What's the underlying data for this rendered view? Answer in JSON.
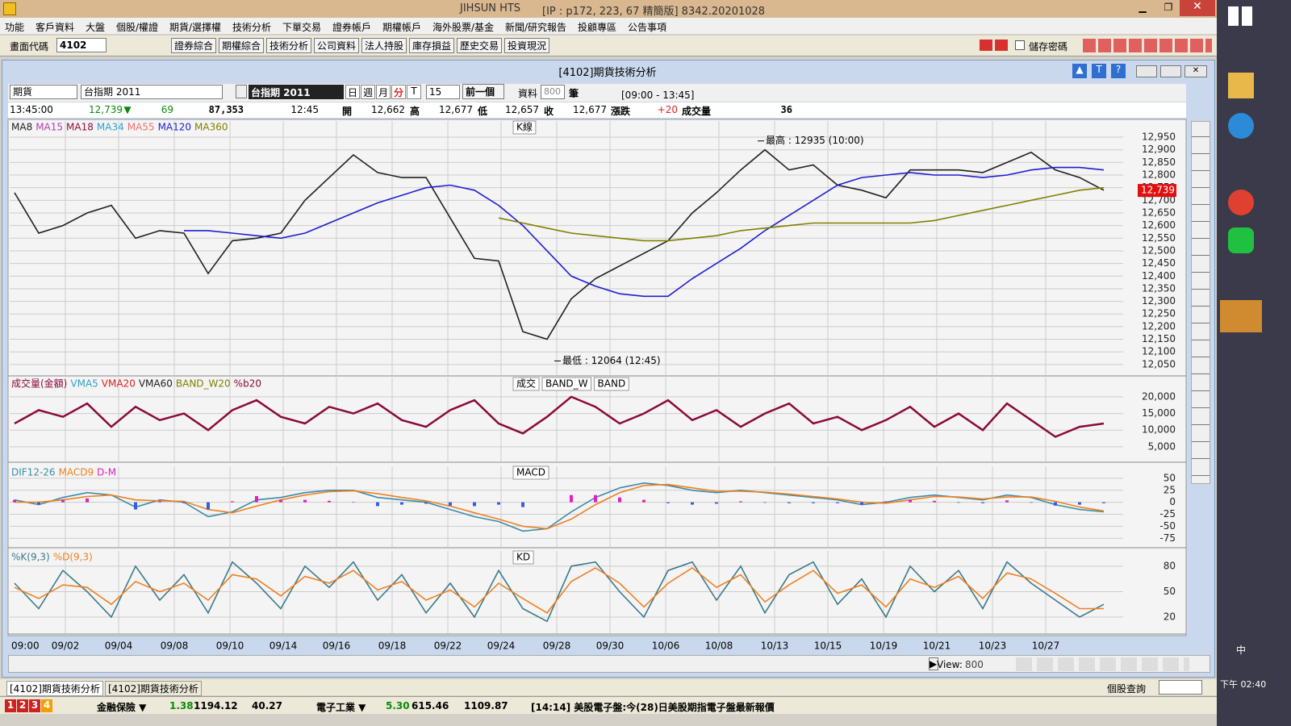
{
  "app": {
    "title": "JIHSUN HTS",
    "conn": "[IP : p172, 223, 67 精簡版] 8342.20201028",
    "menu": [
      "功能",
      "客戶資料",
      "大盤",
      "個股/權證",
      "期貨/選擇權",
      "技術分析",
      "下單交易",
      "證券帳戶",
      "期權帳戶",
      "海外股票/基金",
      "新聞/研究報告",
      "投顧專區",
      "公告事項"
    ],
    "code_label": "畫面代碼",
    "code": "4102",
    "buttons": [
      "證券綜合",
      "期權綜合",
      "技術分析",
      "公司資料",
      "法人持股",
      "庫存損益",
      "歷史交易",
      "投資現況"
    ],
    "save_pwd": "儲存密碼",
    "window_title": "[4102]期貨技術分析",
    "controls": {
      "kind": "期貨",
      "product": "台指期 2011",
      "product2": "台指期 2011",
      "periods": [
        "日",
        "週",
        "月",
        "分",
        "T"
      ],
      "minutes": "15",
      "prev": "前一個",
      "data_label": "資料",
      "count": "800",
      "unit": "筆",
      "session": "[09:00 - 13:45]"
    },
    "quote": [
      "13:45:00",
      "12,739",
      "▼",
      "69",
      "87,353",
      "12:45",
      "開",
      "12,662",
      "高",
      "12,677",
      "低",
      "12,657",
      "收",
      "12,677",
      "漲跌",
      "+20",
      "成交量",
      "36"
    ],
    "view": "View:",
    "view_count": "800",
    "tabs": [
      "[4102]期貨技術分析",
      "[4102]期貨技術分析"
    ],
    "query": "個股查詢",
    "page_nums": [
      "1",
      "2",
      "3",
      "4"
    ],
    "ticker": [
      "金融保險 ▼",
      "1.38",
      "1194.12",
      "40.27",
      "電子工業 ▼",
      "5.30",
      "615.46",
      "1109.87",
      "[14:14] 美股電子盤:今(28)日美股期指電子盤最新報價"
    ],
    "clock": "下午 02:40",
    "ime": "中"
  },
  "chart_data": [
    {
      "type": "line",
      "title": "K線",
      "legend": [
        {
          "text": "MA8",
          "color": "#202020"
        },
        {
          "text": "MA15",
          "color": "#b040b0"
        },
        {
          "text": "MA18",
          "color": "#8b1040"
        },
        {
          "text": "MA34",
          "color": "#30a0c8"
        },
        {
          "text": "MA55",
          "color": "#f07070"
        },
        {
          "text": "MA120",
          "color": "#1e1ed0"
        },
        {
          "text": "MA360",
          "color": "#808000"
        }
      ],
      "ylim": [
        12008,
        13014
      ],
      "yticks": [
        {
          "value": 12050,
          "label": "12,050"
        },
        {
          "value": 12100,
          "label": "12,100"
        },
        {
          "value": 12150,
          "label": "12,150"
        },
        {
          "value": 12200,
          "label": "12,200"
        },
        {
          "value": 12250,
          "label": "12,250"
        },
        {
          "value": 12300,
          "label": "12,300"
        },
        {
          "value": 12350,
          "label": "12,350"
        },
        {
          "value": 12400,
          "label": "12,400"
        },
        {
          "value": 12450,
          "label": "12,450"
        },
        {
          "value": 12500,
          "label": "12,500"
        },
        {
          "value": 12550,
          "label": "12,550"
        },
        {
          "value": 12600,
          "label": "12,600"
        },
        {
          "value": 12650,
          "label": "12,650"
        },
        {
          "value": 12700,
          "label": "12,700"
        },
        {
          "value": 12750,
          "label": "12,750"
        },
        {
          "value": 12800,
          "label": "12,800"
        },
        {
          "value": 12850,
          "label": "12,850"
        },
        {
          "value": 12900,
          "label": "12,900"
        },
        {
          "value": 12950,
          "label": "12,950"
        }
      ],
      "series": [
        {
          "color": "#202020",
          "values": [
            12730,
            12570,
            12600,
            12650,
            12680,
            12550,
            12580,
            12570,
            12410,
            12540,
            12550,
            12570,
            12700,
            12790,
            12880,
            12810,
            12790,
            12790,
            12630,
            12470,
            12460,
            12180,
            12150,
            12310,
            12390,
            12440,
            12490,
            12540,
            12650,
            12730,
            12820,
            12900,
            12820,
            12840,
            12760,
            12740,
            12710,
            12820,
            12820,
            12820,
            12810,
            12850,
            12890,
            12820,
            12790,
            12740
          ]
        },
        {
          "color": "#1e1ed0",
          "values": [
            null,
            null,
            null,
            null,
            null,
            null,
            null,
            12580,
            12580,
            12570,
            12560,
            12550,
            12570,
            12610,
            12650,
            12690,
            12720,
            12750,
            12760,
            12740,
            12680,
            12600,
            12500,
            12400,
            12360,
            12330,
            12320,
            12320,
            12390,
            12450,
            12510,
            12580,
            12640,
            12700,
            12760,
            12790,
            12800,
            12810,
            12800,
            12800,
            12790,
            12800,
            12820,
            12830,
            12830,
            12820
          ]
        },
        {
          "color": "#808000",
          "values": [
            null,
            null,
            null,
            null,
            null,
            null,
            null,
            null,
            null,
            null,
            null,
            null,
            null,
            null,
            null,
            null,
            null,
            null,
            null,
            null,
            12630,
            12610,
            12590,
            12570,
            12560,
            12550,
            12540,
            12540,
            12550,
            12560,
            12580,
            12590,
            12600,
            12610,
            12610,
            12610,
            12610,
            12610,
            12620,
            12640,
            12660,
            12680,
            12700,
            12720,
            12740,
            12750
          ]
        }
      ],
      "annotations": [
        {
          "text": "最高 : 12935 (10:00)",
          "x": 30.7,
          "value": 12935
        },
        {
          "text": "最低 : 12064 (12:45)",
          "x": 22.3,
          "value": 12064
        }
      ],
      "last": {
        "value": 12739,
        "label": "12,739"
      }
    },
    {
      "type": "line",
      "title": [
        "成交",
        "BAND_W",
        "BAND"
      ],
      "legend": [
        {
          "text": "成交量(金額)",
          "color": "#8b0a3a"
        },
        {
          "text": "VMA5",
          "color": "#30a0c8"
        },
        {
          "text": "VMA20",
          "color": "#e02020"
        },
        {
          "text": "VMA60",
          "color": "#202020"
        },
        {
          "text": "BAND_W20",
          "color": "#808000"
        },
        {
          "text": "%b20",
          "color": "#8b0a3a"
        }
      ],
      "ylim": [
        600,
        25800
      ],
      "yticks": [
        {
          "value": 5000,
          "label": "5,000"
        },
        {
          "value": 10000,
          "label": "10,000"
        },
        {
          "value": 15000,
          "label": "15,000"
        },
        {
          "value": 20000,
          "label": "20,000"
        }
      ],
      "series": [
        {
          "color": "#8b0a3a",
          "values": [
            12000,
            16000,
            14000,
            18000,
            11000,
            17000,
            13000,
            15000,
            10000,
            16000,
            19000,
            14000,
            12000,
            17000,
            15000,
            18000,
            13000,
            11000,
            16000,
            19000,
            12000,
            9000,
            14000,
            20000,
            17000,
            12000,
            15000,
            19000,
            13000,
            16000,
            11000,
            15000,
            18000,
            12000,
            14000,
            10000,
            13000,
            17000,
            11000,
            15000,
            10000,
            18000,
            13000,
            8000,
            11000,
            12000
          ]
        }
      ]
    },
    {
      "type": "line",
      "title": "MACD",
      "legend": [
        {
          "text": "DIF12-26",
          "color": "#3c8ca8"
        },
        {
          "text": "MACD9",
          "color": "#f08020"
        },
        {
          "text": "D-M",
          "color": "#e020c0"
        }
      ],
      "ylim": [
        -93,
        75
      ],
      "yticks": [
        50,
        25,
        0,
        -25,
        -50,
        -75
      ],
      "series": [
        {
          "color": "#3c8ca8",
          "values": [
            5,
            -5,
            10,
            20,
            15,
            -10,
            5,
            0,
            -30,
            -20,
            5,
            10,
            20,
            25,
            25,
            10,
            5,
            0,
            -15,
            -30,
            -40,
            -60,
            -55,
            -20,
            10,
            30,
            40,
            35,
            25,
            20,
            25,
            20,
            15,
            10,
            5,
            -5,
            0,
            10,
            15,
            10,
            5,
            15,
            10,
            -5,
            -15,
            -20
          ]
        },
        {
          "color": "#f08020",
          "values": [
            0,
            0,
            5,
            12,
            15,
            5,
            3,
            2,
            -15,
            -22,
            -8,
            5,
            15,
            22,
            24,
            18,
            10,
            3,
            -8,
            -22,
            -35,
            -50,
            -55,
            -35,
            -5,
            20,
            35,
            37,
            30,
            23,
            23,
            21,
            17,
            12,
            7,
            0,
            -2,
            5,
            12,
            11,
            7,
            11,
            11,
            2,
            -10,
            -18
          ]
        },
        {
          "color": "#e020c0",
          "type": "bar",
          "values": [
            5,
            -5,
            5,
            8,
            0,
            -15,
            2,
            -2,
            -15,
            2,
            13,
            5,
            5,
            3,
            1,
            -8,
            -5,
            -3,
            -7,
            -8,
            -5,
            -10,
            0,
            15,
            15,
            10,
            5,
            -2,
            -5,
            -3,
            2,
            -1,
            -2,
            -2,
            -2,
            -5,
            2,
            5,
            3,
            -1,
            -2,
            4,
            -1,
            -7,
            -5,
            -2
          ]
        }
      ]
    },
    {
      "type": "line",
      "title": "KD",
      "legend": [
        {
          "text": "%K(9,3)",
          "color": "#3a7a8a"
        },
        {
          "text": "%D(9,3)",
          "color": "#f08020"
        }
      ],
      "ylim": [
        1,
        98
      ],
      "yticks": [
        80,
        50,
        20
      ],
      "series": [
        {
          "color": "#3a7a8a",
          "values": [
            60,
            30,
            75,
            50,
            20,
            80,
            40,
            70,
            25,
            85,
            60,
            30,
            80,
            55,
            85,
            40,
            70,
            25,
            60,
            20,
            75,
            30,
            15,
            80,
            85,
            50,
            20,
            75,
            85,
            40,
            80,
            25,
            70,
            85,
            35,
            65,
            20,
            80,
            50,
            75,
            30,
            85,
            60,
            40,
            20,
            35
          ]
        },
        {
          "color": "#f08020",
          "values": [
            55,
            42,
            58,
            55,
            35,
            62,
            50,
            60,
            40,
            70,
            65,
            45,
            68,
            60,
            75,
            52,
            62,
            40,
            52,
            32,
            60,
            42,
            25,
            62,
            78,
            60,
            32,
            60,
            78,
            55,
            70,
            38,
            58,
            75,
            48,
            58,
            32,
            65,
            55,
            68,
            42,
            72,
            65,
            48,
            30,
            30
          ]
        }
      ],
      "xlim": [
        0,
        45
      ],
      "xticks": [
        {
          "value": 0,
          "label": "09:00"
        },
        {
          "value": 2.1,
          "label": "09/02"
        },
        {
          "value": 4.3,
          "label": "09/04"
        },
        {
          "value": 6.6,
          "label": "09/08"
        },
        {
          "value": 8.9,
          "label": "09/10"
        },
        {
          "value": 11.1,
          "label": "09/14"
        },
        {
          "value": 13.3,
          "label": "09/16"
        },
        {
          "value": 15.6,
          "label": "09/18"
        },
        {
          "value": 17.9,
          "label": "09/22"
        },
        {
          "value": 20.1,
          "label": "09/24"
        },
        {
          "value": 22.4,
          "label": "09/28"
        },
        {
          "value": 24.6,
          "label": "09/30"
        },
        {
          "value": 26.9,
          "label": "10/06"
        },
        {
          "value": 29.1,
          "label": "10/08"
        },
        {
          "value": 31.4,
          "label": "10/13"
        },
        {
          "value": 33.6,
          "label": "10/15"
        },
        {
          "value": 35.9,
          "label": "10/19"
        },
        {
          "value": 38.1,
          "label": "10/21"
        },
        {
          "value": 40.4,
          "label": "10/23"
        },
        {
          "value": 42.6,
          "label": "10/27"
        }
      ]
    }
  ]
}
